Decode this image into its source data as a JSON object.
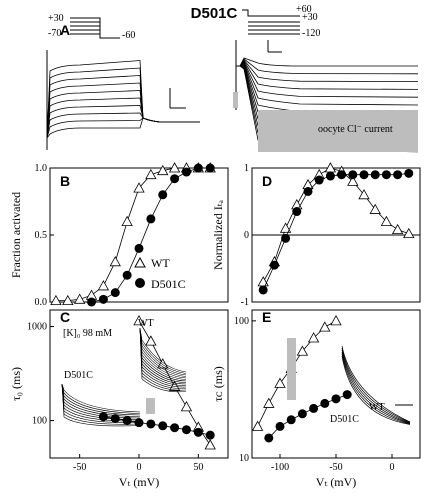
{
  "figure": {
    "title": "D501C",
    "panels": {
      "A": "A",
      "B": "B",
      "C": "C",
      "D": "D",
      "E": "E"
    },
    "protocol_left": {
      "v1": "+30",
      "v2": "-70",
      "v3": "-60"
    },
    "protocol_right": {
      "v1": "+60",
      "v2": "+30",
      "v3": "-120"
    },
    "oocyte_label": "oocyte Cl⁻ current",
    "k_label": "[K]₀ 98 mM",
    "wt_inset": "WT",
    "d501c_inset": "D501C",
    "wt_inset_E": "WT",
    "d501c_inset_E": "D501C"
  },
  "chart_data": [
    {
      "id": "B",
      "type": "scatter",
      "xlabel": "",
      "ylabel": "Fraction activated",
      "xlim": [
        -75,
        75
      ],
      "ylim": [
        0,
        1.0
      ],
      "yticks": [
        "0.0",
        "0.5",
        "1.0"
      ],
      "legend": {
        "position": "center-right"
      },
      "series": [
        {
          "name": "WT",
          "marker": "triangle",
          "x": [
            -70,
            -60,
            -50,
            -40,
            -30,
            -20,
            -10,
            0,
            10,
            20,
            30,
            40,
            50,
            60
          ],
          "y": [
            0.01,
            0.01,
            0.02,
            0.05,
            0.12,
            0.3,
            0.6,
            0.85,
            0.95,
            0.98,
            1.0,
            1.0,
            1.0,
            1.0
          ]
        },
        {
          "name": "D501C",
          "marker": "circle",
          "x": [
            -40,
            -30,
            -20,
            -10,
            0,
            10,
            20,
            30,
            40,
            50,
            60
          ],
          "y": [
            0.0,
            0.02,
            0.07,
            0.2,
            0.4,
            0.62,
            0.8,
            0.92,
            0.97,
            1.0,
            1.0
          ]
        }
      ]
    },
    {
      "id": "C",
      "type": "scatter",
      "xlabel": "Vₜ (mV)",
      "ylabel": "τ₀ (ms)",
      "xlim": [
        -75,
        75
      ],
      "ylim": [
        40,
        1500
      ],
      "yscale": "log",
      "xticks": [
        "-50",
        "0",
        "50"
      ],
      "yticks": [
        "100",
        "1000"
      ],
      "series": [
        {
          "name": "WT",
          "marker": "triangle",
          "x": [
            0,
            10,
            20,
            30,
            40,
            50,
            60
          ],
          "y": [
            1150,
            700,
            400,
            230,
            140,
            85,
            55
          ]
        },
        {
          "name": "D501C",
          "marker": "circle",
          "x": [
            -30,
            -20,
            -10,
            0,
            10,
            20,
            30,
            40,
            50,
            60
          ],
          "y": [
            110,
            105,
            100,
            95,
            92,
            88,
            84,
            80,
            75,
            70
          ]
        }
      ]
    },
    {
      "id": "D",
      "type": "scatter",
      "xlabel": "",
      "ylabel": "Normalized Iₜₐ",
      "xlim": [
        -125,
        25
      ],
      "ylim": [
        -1,
        1
      ],
      "yticks": [
        "-1",
        "0",
        "1"
      ],
      "series": [
        {
          "name": "WT",
          "marker": "triangle",
          "x": [
            -115,
            -105,
            -95,
            -85,
            -75,
            -65,
            -55,
            -45,
            -35,
            -25,
            -15,
            -5,
            5,
            15
          ],
          "y": [
            -0.7,
            -0.4,
            0.1,
            0.45,
            0.75,
            0.9,
            1.0,
            0.95,
            0.8,
            0.6,
            0.38,
            0.2,
            0.08,
            0.02
          ]
        },
        {
          "name": "D501C",
          "marker": "circle",
          "x": [
            -115,
            -105,
            -95,
            -85,
            -75,
            -65,
            -55,
            -45,
            -35,
            -25,
            -15,
            -5,
            5,
            15
          ],
          "y": [
            -0.82,
            -0.45,
            -0.05,
            0.35,
            0.65,
            0.82,
            0.88,
            0.9,
            0.9,
            0.9,
            0.9,
            0.9,
            0.9,
            0.92
          ]
        }
      ]
    },
    {
      "id": "E",
      "type": "scatter",
      "xlabel": "Vₜ (mV)",
      "ylabel": "τᴄ (ms)",
      "xlim": [
        -125,
        25
      ],
      "ylim": [
        10,
        120
      ],
      "yscale": "log",
      "xticks": [
        "-100",
        "-50",
        "0"
      ],
      "yticks": [
        "10",
        "100"
      ],
      "series": [
        {
          "name": "WT",
          "marker": "triangle",
          "x": [
            -120,
            -110,
            -100,
            -90,
            -80,
            -70,
            -60,
            -50
          ],
          "y": [
            17,
            25,
            35,
            45,
            60,
            75,
            90,
            100
          ]
        },
        {
          "name": "D501C",
          "marker": "circle",
          "x": [
            -110,
            -100,
            -90,
            -80,
            -70,
            -60,
            -50,
            -40
          ],
          "y": [
            14,
            17,
            19,
            21,
            23,
            25,
            27,
            29
          ]
        }
      ]
    }
  ]
}
